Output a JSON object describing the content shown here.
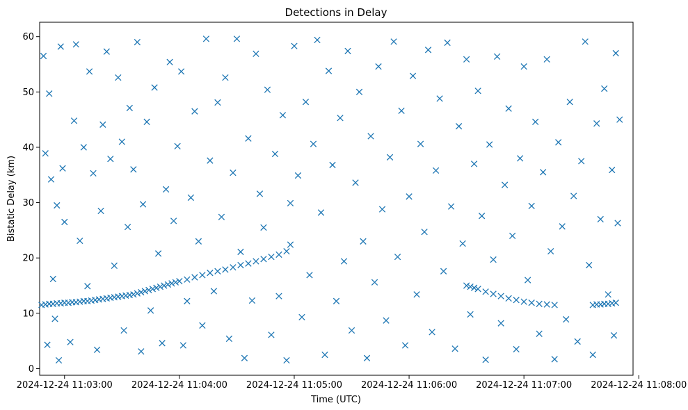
{
  "chart_data": {
    "type": "scatter",
    "title": "Detections in Delay",
    "xlabel": "Time (UTC)",
    "ylabel": "Bistatic Delay (km)",
    "marker": "x",
    "color": "#1f77b4",
    "grid": false,
    "x_axis": {
      "kind": "time",
      "range": [
        "2024-12-24 11:02:47",
        "2024-12-24 11:07:57"
      ],
      "ticks": [
        {
          "value": "2024-12-24 11:03:00",
          "label": "2024-12-24 11:03:00"
        },
        {
          "value": "2024-12-24 11:04:00",
          "label": "2024-12-24 11:04:00"
        },
        {
          "value": "2024-12-24 11:05:00",
          "label": "2024-12-24 11:05:00"
        },
        {
          "value": "2024-12-24 11:06:00",
          "label": "2024-12-24 11:06:00"
        },
        {
          "value": "2024-12-24 11:07:00",
          "label": "2024-12-24 11:07:00"
        },
        {
          "value": "2024-12-24 11:08:00",
          "label": "2024-12-24 11:08:00"
        }
      ]
    },
    "y_axis": {
      "range": [
        -1.2,
        62.6
      ],
      "ticks": [
        0,
        10,
        20,
        30,
        40,
        50,
        60
      ]
    },
    "series": [
      {
        "points": [
          [
            "11:02:48",
            11.5
          ],
          [
            "11:02:50",
            11.6
          ],
          [
            "11:02:52",
            11.7
          ],
          [
            "11:02:54",
            11.7
          ],
          [
            "11:02:56",
            11.8
          ],
          [
            "11:02:58",
            11.8
          ],
          [
            "11:03:00",
            11.9
          ],
          [
            "11:03:02",
            11.9
          ],
          [
            "11:03:04",
            12.0
          ],
          [
            "11:03:06",
            12.0
          ],
          [
            "11:03:08",
            12.1
          ],
          [
            "11:03:10",
            12.2
          ],
          [
            "11:03:12",
            12.2
          ],
          [
            "11:03:14",
            12.3
          ],
          [
            "11:03:16",
            12.4
          ],
          [
            "11:03:18",
            12.5
          ],
          [
            "11:03:20",
            12.6
          ],
          [
            "11:03:22",
            12.7
          ],
          [
            "11:03:24",
            12.8
          ],
          [
            "11:03:26",
            12.9
          ],
          [
            "11:03:28",
            13.0
          ],
          [
            "11:03:30",
            13.1
          ],
          [
            "11:03:32",
            13.2
          ],
          [
            "11:03:34",
            13.3
          ],
          [
            "11:03:36",
            13.4
          ],
          [
            "11:03:38",
            13.6
          ],
          [
            "11:03:40",
            13.8
          ],
          [
            "11:03:42",
            14.0
          ],
          [
            "11:03:44",
            14.2
          ],
          [
            "11:03:46",
            14.4
          ],
          [
            "11:03:48",
            14.6
          ],
          [
            "11:03:50",
            14.8
          ],
          [
            "11:03:52",
            15.0
          ],
          [
            "11:03:54",
            15.2
          ],
          [
            "11:03:56",
            15.4
          ],
          [
            "11:03:58",
            15.6
          ],
          [
            "11:04:00",
            15.8
          ],
          [
            "11:04:04",
            16.1
          ],
          [
            "11:04:08",
            16.5
          ],
          [
            "11:04:12",
            16.9
          ],
          [
            "11:04:16",
            17.3
          ],
          [
            "11:04:20",
            17.6
          ],
          [
            "11:04:24",
            17.9
          ],
          [
            "11:04:28",
            18.3
          ],
          [
            "11:04:32",
            18.7
          ],
          [
            "11:04:36",
            19.0
          ],
          [
            "11:04:40",
            19.4
          ],
          [
            "11:04:44",
            19.8
          ],
          [
            "11:04:48",
            20.2
          ],
          [
            "11:04:52",
            20.6
          ],
          [
            "11:04:56",
            21.2
          ],
          [
            "11:04:58",
            22.4
          ],
          [
            "11:06:30",
            15.0
          ],
          [
            "11:06:32",
            14.8
          ],
          [
            "11:06:34",
            14.6
          ],
          [
            "11:06:36",
            14.4
          ],
          [
            "11:06:40",
            13.9
          ],
          [
            "11:06:44",
            13.5
          ],
          [
            "11:06:48",
            13.1
          ],
          [
            "11:06:52",
            12.7
          ],
          [
            "11:06:56",
            12.4
          ],
          [
            "11:07:00",
            12.1
          ],
          [
            "11:07:04",
            11.9
          ],
          [
            "11:07:08",
            11.7
          ],
          [
            "11:07:12",
            11.6
          ],
          [
            "11:07:16",
            11.5
          ],
          [
            "11:07:36",
            11.5
          ],
          [
            "11:07:38",
            11.6
          ],
          [
            "11:07:40",
            11.6
          ],
          [
            "11:07:42",
            11.7
          ],
          [
            "11:07:44",
            11.7
          ],
          [
            "11:07:46",
            11.8
          ],
          [
            "11:07:48",
            11.9
          ],
          [
            "11:02:49",
            56.5
          ],
          [
            "11:02:50",
            38.9
          ],
          [
            "11:02:51",
            4.3
          ],
          [
            "11:02:52",
            49.7
          ],
          [
            "11:02:53",
            34.2
          ],
          [
            "11:02:54",
            16.2
          ],
          [
            "11:02:55",
            9.0
          ],
          [
            "11:02:56",
            29.5
          ],
          [
            "11:02:57",
            1.5
          ],
          [
            "11:02:58",
            58.2
          ],
          [
            "11:02:59",
            36.2
          ],
          [
            "11:03:00",
            26.5
          ],
          [
            "11:03:03",
            4.8
          ],
          [
            "11:03:05",
            44.8
          ],
          [
            "11:03:06",
            58.6
          ],
          [
            "11:03:08",
            23.1
          ],
          [
            "11:03:10",
            40.0
          ],
          [
            "11:03:12",
            14.9
          ],
          [
            "11:03:13",
            53.7
          ],
          [
            "11:03:15",
            35.3
          ],
          [
            "11:03:17",
            3.4
          ],
          [
            "11:03:19",
            28.5
          ],
          [
            "11:03:20",
            44.1
          ],
          [
            "11:03:22",
            57.3
          ],
          [
            "11:03:24",
            37.9
          ],
          [
            "11:03:26",
            18.6
          ],
          [
            "11:03:28",
            52.6
          ],
          [
            "11:03:30",
            41.0
          ],
          [
            "11:03:31",
            6.9
          ],
          [
            "11:03:33",
            25.6
          ],
          [
            "11:03:34",
            47.1
          ],
          [
            "11:03:36",
            36.0
          ],
          [
            "11:03:38",
            59.0
          ],
          [
            "11:03:40",
            3.1
          ],
          [
            "11:03:41",
            29.7
          ],
          [
            "11:03:43",
            44.6
          ],
          [
            "11:03:45",
            10.5
          ],
          [
            "11:03:47",
            50.8
          ],
          [
            "11:03:49",
            20.8
          ],
          [
            "11:03:51",
            4.6
          ],
          [
            "11:03:53",
            32.4
          ],
          [
            "11:03:55",
            55.4
          ],
          [
            "11:03:57",
            26.7
          ],
          [
            "11:03:59",
            40.2
          ],
          [
            "11:04:01",
            53.7
          ],
          [
            "11:04:02",
            4.2
          ],
          [
            "11:04:04",
            12.2
          ],
          [
            "11:04:06",
            30.9
          ],
          [
            "11:04:08",
            46.5
          ],
          [
            "11:04:10",
            23.0
          ],
          [
            "11:04:12",
            7.8
          ],
          [
            "11:04:14",
            59.6
          ],
          [
            "11:04:16",
            37.6
          ],
          [
            "11:04:18",
            14.0
          ],
          [
            "11:04:20",
            48.1
          ],
          [
            "11:04:22",
            27.4
          ],
          [
            "11:04:24",
            52.6
          ],
          [
            "11:04:26",
            5.4
          ],
          [
            "11:04:28",
            35.4
          ],
          [
            "11:04:30",
            59.6
          ],
          [
            "11:04:32",
            21.1
          ],
          [
            "11:04:34",
            1.9
          ],
          [
            "11:04:36",
            41.6
          ],
          [
            "11:04:38",
            12.3
          ],
          [
            "11:04:40",
            56.9
          ],
          [
            "11:04:42",
            31.6
          ],
          [
            "11:04:44",
            25.5
          ],
          [
            "11:04:46",
            50.4
          ],
          [
            "11:04:48",
            6.1
          ],
          [
            "11:04:50",
            38.8
          ],
          [
            "11:04:52",
            13.1
          ],
          [
            "11:04:54",
            45.8
          ],
          [
            "11:04:56",
            1.5
          ],
          [
            "11:04:58",
            29.9
          ],
          [
            "11:05:00",
            58.3
          ],
          [
            "11:05:02",
            34.9
          ],
          [
            "11:05:04",
            9.3
          ],
          [
            "11:05:06",
            48.2
          ],
          [
            "11:05:08",
            16.9
          ],
          [
            "11:05:10",
            40.6
          ],
          [
            "11:05:12",
            59.4
          ],
          [
            "11:05:14",
            28.2
          ],
          [
            "11:05:16",
            2.5
          ],
          [
            "11:05:18",
            53.8
          ],
          [
            "11:05:20",
            36.8
          ],
          [
            "11:05:22",
            12.2
          ],
          [
            "11:05:24",
            45.3
          ],
          [
            "11:05:26",
            19.4
          ],
          [
            "11:05:28",
            57.4
          ],
          [
            "11:05:30",
            6.9
          ],
          [
            "11:05:32",
            33.6
          ],
          [
            "11:05:34",
            50.0
          ],
          [
            "11:05:36",
            23.0
          ],
          [
            "11:05:38",
            1.9
          ],
          [
            "11:05:40",
            42.0
          ],
          [
            "11:05:42",
            15.6
          ],
          [
            "11:05:44",
            54.6
          ],
          [
            "11:05:46",
            28.8
          ],
          [
            "11:05:48",
            8.7
          ],
          [
            "11:05:50",
            38.2
          ],
          [
            "11:05:52",
            59.1
          ],
          [
            "11:05:54",
            20.2
          ],
          [
            "11:05:56",
            46.6
          ],
          [
            "11:05:58",
            4.2
          ],
          [
            "11:06:00",
            31.1
          ],
          [
            "11:06:02",
            52.9
          ],
          [
            "11:06:04",
            13.4
          ],
          [
            "11:06:06",
            40.6
          ],
          [
            "11:06:08",
            24.7
          ],
          [
            "11:06:10",
            57.6
          ],
          [
            "11:06:12",
            6.6
          ],
          [
            "11:06:14",
            35.8
          ],
          [
            "11:06:16",
            48.8
          ],
          [
            "11:06:18",
            17.6
          ],
          [
            "11:06:20",
            58.9
          ],
          [
            "11:06:22",
            29.3
          ],
          [
            "11:06:24",
            3.6
          ],
          [
            "11:06:26",
            43.8
          ],
          [
            "11:06:28",
            22.6
          ],
          [
            "11:06:30",
            55.9
          ],
          [
            "11:06:32",
            9.8
          ],
          [
            "11:06:34",
            37.0
          ],
          [
            "11:06:36",
            50.2
          ],
          [
            "11:06:38",
            27.6
          ],
          [
            "11:06:40",
            1.6
          ],
          [
            "11:06:42",
            40.5
          ],
          [
            "11:06:44",
            19.7
          ],
          [
            "11:06:46",
            56.4
          ],
          [
            "11:06:48",
            8.2
          ],
          [
            "11:06:50",
            33.2
          ],
          [
            "11:06:52",
            47.0
          ],
          [
            "11:06:54",
            24.0
          ],
          [
            "11:06:56",
            3.5
          ],
          [
            "11:06:58",
            38.0
          ],
          [
            "11:07:00",
            54.6
          ],
          [
            "11:07:02",
            16.0
          ],
          [
            "11:07:04",
            29.4
          ],
          [
            "11:07:06",
            44.6
          ],
          [
            "11:07:08",
            6.3
          ],
          [
            "11:07:10",
            35.5
          ],
          [
            "11:07:12",
            55.9
          ],
          [
            "11:07:14",
            21.2
          ],
          [
            "11:07:16",
            1.7
          ],
          [
            "11:07:18",
            40.9
          ],
          [
            "11:07:20",
            25.7
          ],
          [
            "11:07:22",
            8.9
          ],
          [
            "11:07:24",
            48.2
          ],
          [
            "11:07:26",
            31.2
          ],
          [
            "11:07:28",
            4.9
          ],
          [
            "11:07:30",
            37.5
          ],
          [
            "11:07:32",
            59.1
          ],
          [
            "11:07:34",
            18.7
          ],
          [
            "11:07:36",
            2.5
          ],
          [
            "11:07:38",
            44.3
          ],
          [
            "11:07:40",
            27.0
          ],
          [
            "11:07:42",
            50.6
          ],
          [
            "11:07:44",
            13.4
          ],
          [
            "11:07:46",
            35.9
          ],
          [
            "11:07:48",
            57.0
          ],
          [
            "11:07:49",
            26.3
          ],
          [
            "11:07:50",
            45.0
          ],
          [
            "11:07:47",
            6.0
          ]
        ]
      }
    ]
  }
}
